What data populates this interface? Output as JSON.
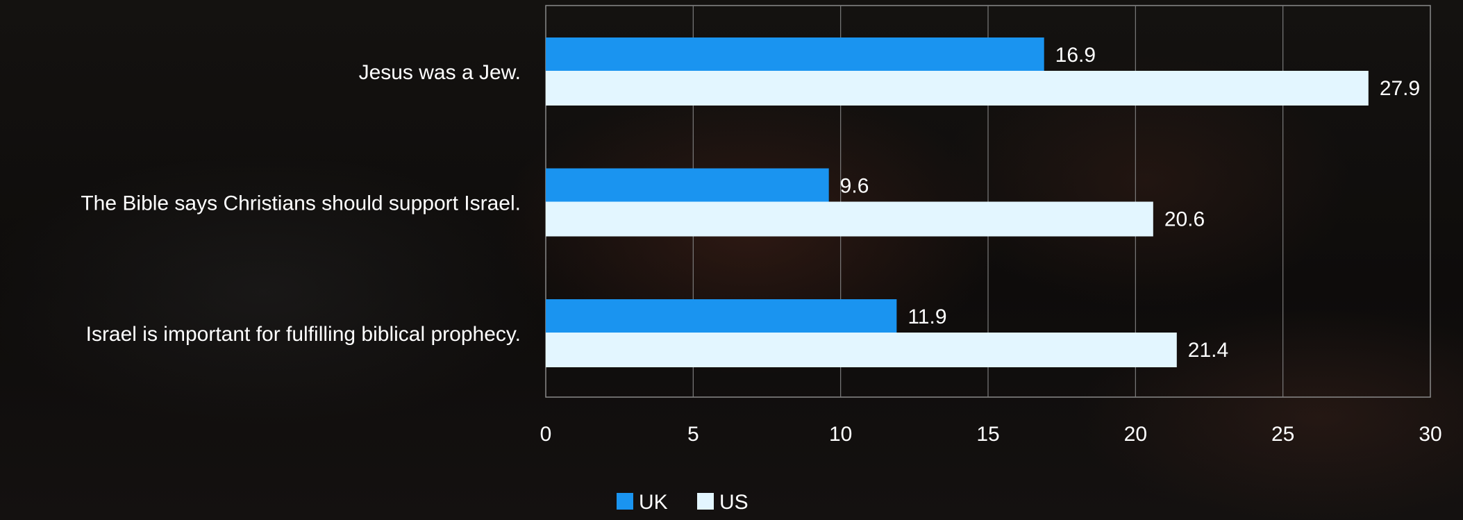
{
  "chart_data": {
    "type": "bar",
    "orientation": "horizontal",
    "categories": [
      "Jesus was a Jew.",
      "The Bible says Christians should support Israel.",
      "Israel is important for fulfilling biblical prophecy."
    ],
    "series": [
      {
        "name": "UK",
        "color": "#1a94f0",
        "values": [
          16.9,
          9.6,
          11.9
        ]
      },
      {
        "name": "US",
        "color": "#e3f6ff",
        "values": [
          27.9,
          20.6,
          21.4
        ]
      }
    ],
    "xlim": [
      0,
      30
    ],
    "xticks": [
      0,
      5,
      10,
      15,
      20,
      25,
      30
    ],
    "grid": true,
    "legend": "bottom",
    "title": "",
    "xlabel": "",
    "ylabel": ""
  }
}
